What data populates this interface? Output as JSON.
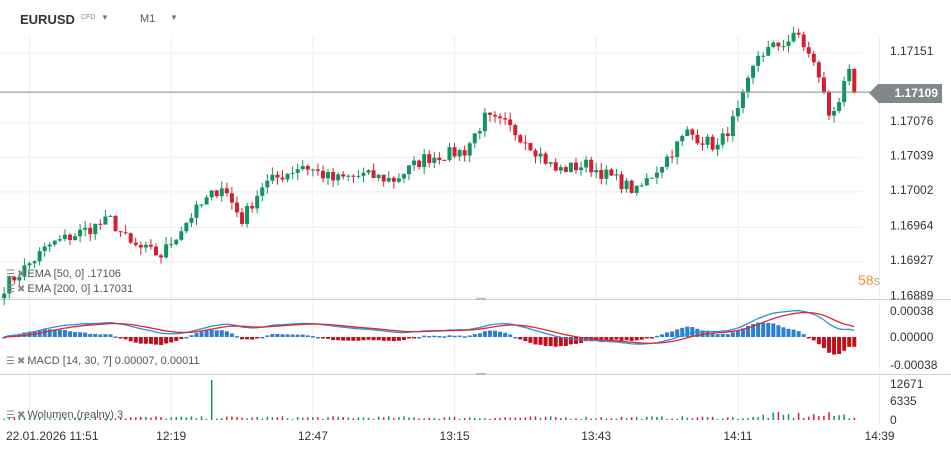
{
  "toolbar": {
    "symbol": "EURUSD",
    "symbol_tag": "CFD",
    "timeframe": "M1",
    "caret": "▼"
  },
  "price_tag": "1.17109",
  "countdown": {
    "value": "58",
    "unit": "s"
  },
  "legends": {
    "ema50": "EMA  [50,  0]    .17106",
    "ema200": "EMA  [200,  0]  1.17031",
    "macd": "MACD  [14,  30,  7]  0.00007,   0.00011",
    "volume": "Wolumen  (realny)  3"
  },
  "colors": {
    "up": "#12935f",
    "down": "#d3202f",
    "macd_line": "#2a8fd6",
    "signal_line": "#e0262e",
    "hist_up": "#2a7fd0",
    "hist_down": "#c40f1a",
    "grid": "#eeeeee"
  },
  "chart_data": {
    "type": "candlestick",
    "price_axis": {
      "ticks": [
        "1.17151",
        "1.17076",
        "1.17039",
        "1.17002",
        "1.16964",
        "1.16927",
        "1.16889"
      ],
      "range": [
        1.1688,
        1.1719
      ]
    },
    "time_axis": {
      "ticks": [
        "22.01.2026  11:51",
        "12:19",
        "12:47",
        "13:15",
        "13:43",
        "14:11",
        "14:39"
      ],
      "tick_minutes": [
        711,
        739,
        767,
        795,
        823,
        851,
        879
      ]
    },
    "first_candle_minute": 706,
    "last_candle_minute": 874,
    "close_waypoints": [
      [
        706,
        1.169
      ],
      [
        715,
        1.16945
      ],
      [
        727,
        1.16972
      ],
      [
        731,
        1.16945
      ],
      [
        737,
        1.16934
      ],
      [
        743,
        1.16977
      ],
      [
        749,
        1.17009
      ],
      [
        753,
        1.16972
      ],
      [
        757,
        1.17009
      ],
      [
        765,
        1.17031
      ],
      [
        771,
        1.17015
      ],
      [
        777,
        1.1702
      ],
      [
        783,
        1.17015
      ],
      [
        789,
        1.17038
      ],
      [
        797,
        1.17046
      ],
      [
        801,
        1.17081
      ],
      [
        805,
        1.17074
      ],
      [
        809,
        1.17058
      ],
      [
        815,
        1.17025
      ],
      [
        821,
        1.17031
      ],
      [
        827,
        1.17015
      ],
      [
        831,
        1.17002
      ],
      [
        837,
        1.17039
      ],
      [
        841,
        1.17066
      ],
      [
        847,
        1.1705
      ],
      [
        851,
        1.17087
      ],
      [
        855,
        1.17149
      ],
      [
        863,
        1.1717
      ],
      [
        867,
        1.17127
      ],
      [
        869,
        1.17085
      ],
      [
        871,
        1.17101
      ],
      [
        873,
        1.17127
      ],
      [
        874,
        1.17109
      ]
    ],
    "macd_axis": {
      "ticks": [
        "0.00038",
        "0.00000",
        "-0.00038"
      ],
      "range": [
        -0.00038,
        0.00038
      ]
    },
    "volume_axis": {
      "ticks": [
        "12671",
        "6335",
        "0"
      ],
      "range": [
        0,
        12671
      ]
    },
    "volume_spike": {
      "minute": 747,
      "value": 12671
    },
    "last_price": 1.17109
  }
}
